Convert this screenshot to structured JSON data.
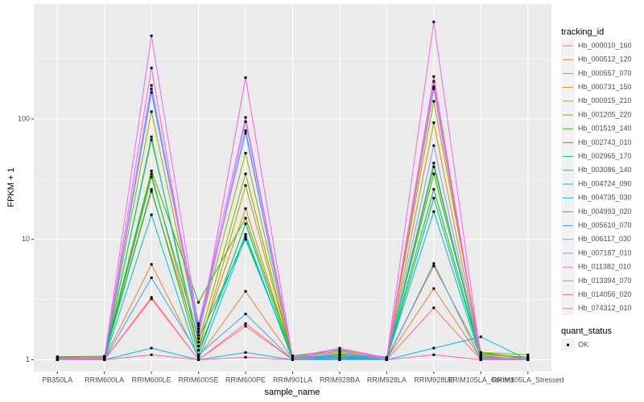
{
  "chart_data": {
    "type": "line",
    "x_label": "sample_name",
    "y_label": "FPKM + 1",
    "categories": [
      "PB350LA",
      "RRIM600LA",
      "RRIM600LE",
      "RRIM600SE",
      "RRIM600PE",
      "RRIM901LA",
      "RRIM928BA",
      "RRIM928LA",
      "RRIM928LE",
      "RRIM105LA_Control",
      "RRIM105LA_Stressed"
    ],
    "ylim": [
      0.8,
      900
    ],
    "yticks": [
      1,
      10,
      100
    ],
    "log_y": true,
    "grid": true,
    "legend_title": "tracking_id",
    "point_legend": {
      "title": "quant_status",
      "labels": [
        "OK"
      ],
      "color": "#000000"
    },
    "series": [
      {
        "name": "Hb_000010_160",
        "color": "#F8766D",
        "values": [
          1.0,
          1.0,
          3.2,
          1.0,
          1.9,
          1.0,
          1.0,
          1.0,
          2.7,
          1.0,
          1.0
        ]
      },
      {
        "name": "Hb_000512_120",
        "color": "#EA8331",
        "values": [
          1.02,
          1.02,
          6.2,
          1.05,
          3.7,
          1.02,
          1.05,
          1.02,
          3.9,
          1.02,
          1.0
        ]
      },
      {
        "name": "Hb_000557_070",
        "color": "#D89000",
        "values": [
          1.03,
          1.03,
          25,
          1.3,
          18,
          1.05,
          1.1,
          1.03,
          6.0,
          1.1,
          1.05
        ]
      },
      {
        "name": "Hb_000731_150",
        "color": "#C09B00",
        "values": [
          1.01,
          1.0,
          35,
          1.2,
          28,
          1.03,
          1.02,
          1.0,
          93,
          1.05,
          1.02
        ]
      },
      {
        "name": "Hb_000915_210",
        "color": "#A3A500",
        "values": [
          1.05,
          1.04,
          115,
          1.7,
          52,
          1.06,
          1.15,
          1.04,
          140,
          1.15,
          1.1
        ]
      },
      {
        "name": "Hb_001205_220",
        "color": "#7CAE00",
        "values": [
          1.02,
          1.05,
          67,
          1.4,
          35,
          1.04,
          1.08,
          1.02,
          40,
          1.12,
          1.05
        ]
      },
      {
        "name": "Hb_001519_140",
        "color": "#39B600",
        "values": [
          1.06,
          1.07,
          37,
          3.0,
          15,
          1.08,
          1.2,
          1.05,
          35,
          1.15,
          1.02
        ]
      },
      {
        "name": "Hb_002743_010",
        "color": "#00BB4E",
        "values": [
          1.04,
          1.03,
          26,
          1.1,
          13.5,
          1.02,
          1.12,
          1.03,
          26,
          1.08,
          1.0
        ]
      },
      {
        "name": "Hb_002965_170",
        "color": "#00BF7D",
        "values": [
          1.03,
          1.02,
          33,
          1.5,
          10,
          1.05,
          1.05,
          1.0,
          22,
          1.05,
          1.03
        ]
      },
      {
        "name": "Hb_003086_140",
        "color": "#00C1A3",
        "values": [
          1.0,
          1.01,
          71,
          1.2,
          11,
          1.0,
          1.03,
          1.01,
          43,
          1.03,
          1.01
        ]
      },
      {
        "name": "Hb_004724_090",
        "color": "#00BFC4",
        "values": [
          1.01,
          1.0,
          16,
          1.0,
          10.5,
          1.01,
          1.0,
          1.02,
          17,
          1.02,
          1.0
        ]
      },
      {
        "name": "Hb_004735_030",
        "color": "#00BAE0",
        "values": [
          1.0,
          1.0,
          1.25,
          1.0,
          1.15,
          1.0,
          1.0,
          1.0,
          1.25,
          1.55,
          1.0
        ]
      },
      {
        "name": "Hb_004993_020",
        "color": "#00B0F6",
        "values": [
          1.02,
          1.01,
          166,
          1.8,
          80,
          1.03,
          1.06,
          1.02,
          178,
          1.04,
          1.02
        ]
      },
      {
        "name": "Hb_005610_070",
        "color": "#35A2FF",
        "values": [
          1.0,
          1.0,
          4.8,
          1.1,
          2.4,
          1.0,
          1.02,
          1.0,
          6.3,
          1.0,
          1.0
        ]
      },
      {
        "name": "Hb_006117_030",
        "color": "#9590FF",
        "values": [
          1.01,
          1.02,
          177,
          2.0,
          76,
          1.02,
          1.1,
          1.01,
          60,
          1.02,
          1.01
        ]
      },
      {
        "name": "Hb_007187_010",
        "color": "#C77CFF",
        "values": [
          1.02,
          1.03,
          190,
          1.6,
          95,
          1.04,
          1.18,
          1.02,
          205,
          1.03,
          1.02
        ]
      },
      {
        "name": "Hb_011382_010",
        "color": "#E76BF3",
        "values": [
          1.03,
          1.04,
          490,
          1.9,
          103,
          1.05,
          1.25,
          1.04,
          640,
          1.04,
          1.03
        ]
      },
      {
        "name": "Hb_013394_070",
        "color": "#FA62DB",
        "values": [
          1.01,
          1.02,
          265,
          1.5,
          220,
          1.03,
          1.22,
          1.03,
          225,
          1.02,
          1.0
        ]
      },
      {
        "name": "Hb_014056_020",
        "color": "#FF62BC",
        "values": [
          1.0,
          1.0,
          1.1,
          1.0,
          1.05,
          1.0,
          1.0,
          1.0,
          1.1,
          1.0,
          1.0
        ]
      },
      {
        "name": "Hb_074312_010",
        "color": "#FF6C91",
        "values": [
          1.0,
          1.0,
          3.3,
          1.0,
          2.0,
          1.0,
          1.0,
          1.0,
          185,
          1.0,
          1.0
        ]
      }
    ]
  }
}
